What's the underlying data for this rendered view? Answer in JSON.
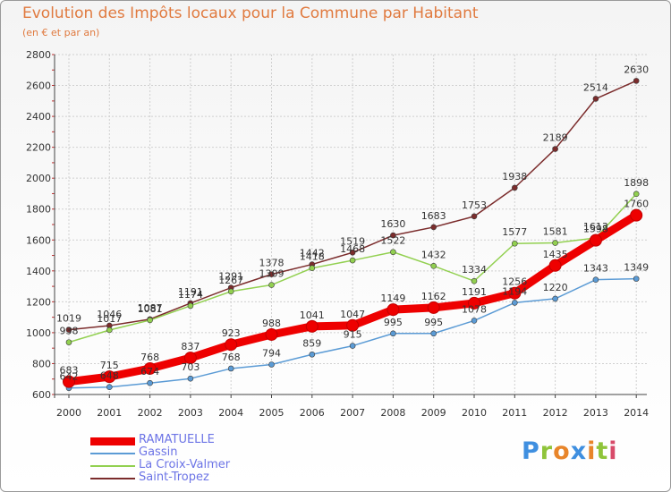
{
  "header": {
    "title": "Evolution des Impôts locaux pour la Commune par Habitant",
    "subtitle": "(en € et par an)"
  },
  "brand": {
    "letters": [
      "P",
      "r",
      "o",
      "x",
      "i",
      "t",
      "i"
    ],
    "colors": [
      "#3f8fe0",
      "#8fc43a",
      "#e8852a",
      "#3f8fe0",
      "#e8852a",
      "#8fc43a",
      "#d84b6a"
    ]
  },
  "chart_data": {
    "type": "line",
    "title": "Evolution des Impôts locaux pour la Commune par Habitant",
    "subtitle": "(en € et par an)",
    "categories": [
      "2000",
      "2001",
      "2002",
      "2003",
      "2004",
      "2005",
      "2006",
      "2007",
      "2008",
      "2009",
      "2010",
      "2011",
      "2012",
      "2013",
      "2014"
    ],
    "ylim": [
      600,
      2800
    ],
    "yticks": [
      "600",
      "800",
      "1000",
      "1200",
      "1400",
      "1600",
      "1800",
      "2000",
      "2200",
      "2400",
      "2600",
      "2800"
    ],
    "grid": true,
    "legend_position": "bottom-left",
    "series": [
      {
        "name": "RAMATUELLE",
        "color": "#ee0000",
        "values": [
          683,
          715,
          768,
          837,
          923,
          988,
          1041,
          1047,
          1149,
          1162,
          1191,
          1256,
          1435,
          1598,
          1760
        ],
        "labels": [
          "683",
          "715",
          "768",
          "837",
          "923",
          "988",
          "1041",
          "1047",
          "1149",
          "1162",
          "1191",
          "1256",
          "1435",
          "1598",
          "1760"
        ]
      },
      {
        "name": "Gassin",
        "color": "#5b9bd5",
        "values": [
          642,
          648,
          674,
          703,
          768,
          794,
          859,
          915,
          995,
          995,
          1078,
          1194,
          1220,
          1343,
          1349
        ],
        "labels": [
          "642",
          "648",
          "674",
          "703",
          "768",
          "794",
          "859",
          "915",
          "995",
          "995",
          "1078",
          "1194",
          "1220",
          "1343",
          "1349"
        ]
      },
      {
        "name": "La Croix-Valmer",
        "color": "#92d050",
        "values": [
          938,
          1017,
          1081,
          1174,
          1267,
          1309,
          1418,
          1468,
          1522,
          1432,
          1334,
          1577,
          1581,
          1613,
          1898
        ],
        "labels": [
          "938",
          "1017",
          "1081",
          "1174",
          "1267",
          "1309",
          "1418",
          "1468",
          "1522",
          "1432",
          "1334",
          "1577",
          "1581",
          "1613",
          "1898"
        ]
      },
      {
        "name": "Saint-Tropez",
        "color": "#7b2c2c",
        "values": [
          1019,
          1046,
          1087,
          1191,
          1291,
          1378,
          1442,
          1519,
          1630,
          1683,
          1753,
          1938,
          2189,
          2514,
          2630
        ],
        "labels": [
          "1019",
          "1046",
          "1087",
          "1191",
          "1291",
          "1378",
          "1442",
          "1519",
          "1630",
          "1683",
          "1753",
          "1938",
          "2189",
          "2514",
          "2630"
        ]
      }
    ]
  }
}
